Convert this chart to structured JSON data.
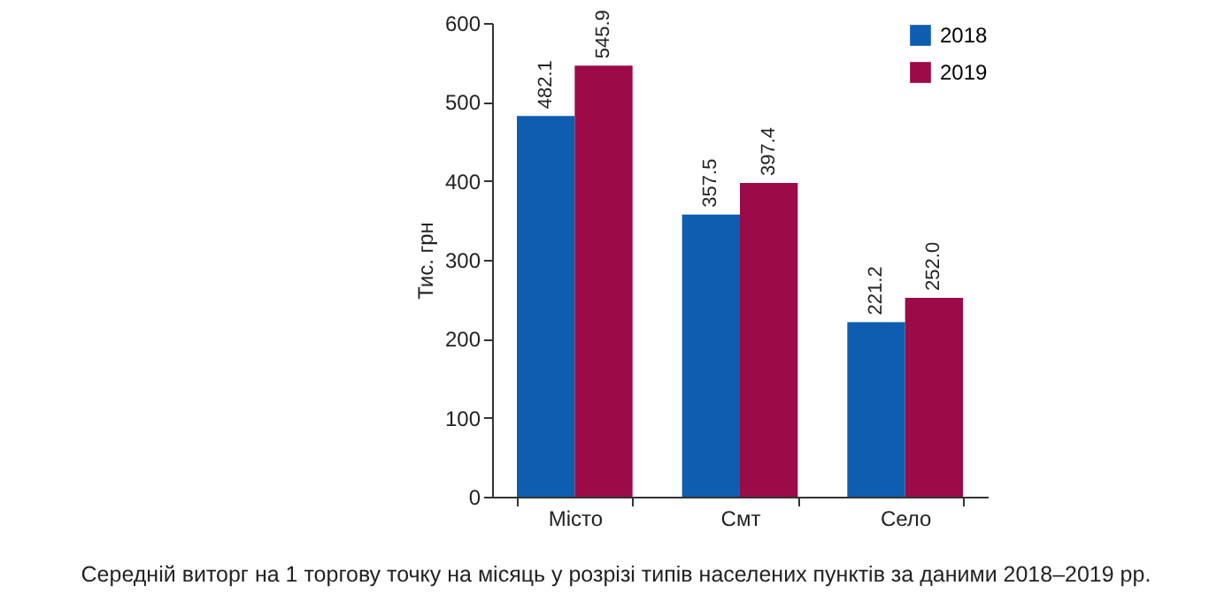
{
  "chart_data": {
    "type": "bar",
    "ylabel": "Тис. грн",
    "categories": [
      "Місто",
      "Смт",
      "Село"
    ],
    "series": [
      {
        "name": "2018",
        "color": "#0f5db0",
        "values": [
          482.1,
          357.5,
          221.2
        ],
        "value_labels": [
          "482.1",
          "357.5",
          "221.2"
        ]
      },
      {
        "name": "2019",
        "color": "#9b0b47",
        "values": [
          545.9,
          397.4,
          252.0
        ],
        "value_labels": [
          "545.9",
          "397.4",
          "252.0"
        ]
      }
    ],
    "ylim": [
      0,
      600
    ],
    "yticks": [
      0,
      100,
      200,
      300,
      400,
      500,
      600
    ],
    "grid": false,
    "legend": "top right",
    "annotations": [
      "Середній виторг на 1 торгову точку на місяць у розрізі типів населених пунктів за даними 2018–2019 рр."
    ]
  }
}
